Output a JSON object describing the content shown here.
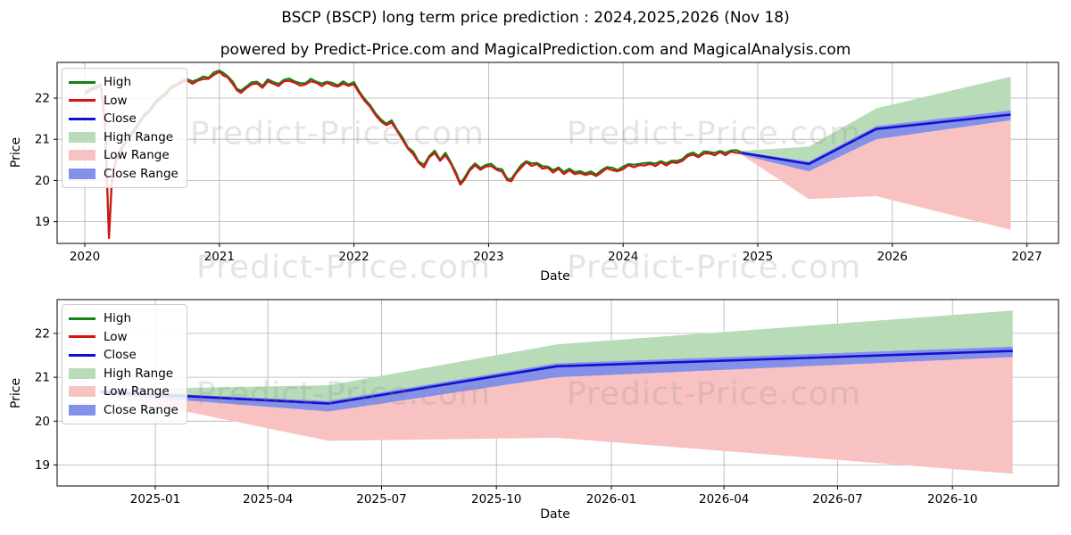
{
  "page": {
    "title": "BSCP (BSCP) long term price prediction : 2024,2025,2026 (Nov 18)",
    "subtitle": "powered by Predict-Price.com and MagicalPrediction.com and MagicalAnalysis.com"
  },
  "watermark": {
    "text": "Predict-Price.com"
  },
  "colors": {
    "high_line": "#148214",
    "low_line": "#d41414",
    "close_line": "#1111cf",
    "high_range_fill": "#b8dcb8",
    "low_range_fill": "#f9c2c2",
    "close_range_fill": "#8590e8",
    "grid": "#b0b0b0",
    "spine": "#000000",
    "tick_text": "#000000",
    "watermark": "#8a8a8a"
  },
  "legend": {
    "items": [
      {
        "label": "High",
        "kind": "line",
        "color": "#148214"
      },
      {
        "label": "Low",
        "kind": "line",
        "color": "#d41414"
      },
      {
        "label": "Close",
        "kind": "line",
        "color": "#1111cf"
      },
      {
        "label": "High Range",
        "kind": "patch",
        "color": "#b8dcb8"
      },
      {
        "label": "Low Range",
        "kind": "patch",
        "color": "#f9c2c2"
      },
      {
        "label": "Close Range",
        "kind": "patch",
        "color": "#8590e8"
      }
    ]
  },
  "chart_data": [
    {
      "type": "line",
      "title": "BSCP (BSCP) long term price prediction : 2024,2025,2026 (Nov 18)",
      "xlabel": "Date",
      "ylabel": "Price",
      "grid": true,
      "legend_position": "upper left",
      "legend_entries": [
        "High",
        "Low",
        "Close",
        "High Range",
        "Low Range",
        "Close Range"
      ],
      "x_ticks": [
        {
          "label": "2020",
          "t": 2020
        },
        {
          "label": "2021",
          "t": 2021
        },
        {
          "label": "2022",
          "t": 2022
        },
        {
          "label": "2023",
          "t": 2023
        },
        {
          "label": "2024",
          "t": 2024
        },
        {
          "label": "2025",
          "t": 2025
        },
        {
          "label": "2026",
          "t": 2026
        },
        {
          "label": "2027",
          "t": 2027
        }
      ],
      "y_ticks": [
        19,
        20,
        21,
        22
      ],
      "ylim": [
        18.45,
        22.9
      ],
      "xlim": [
        2019.79,
        2027.23
      ],
      "historical_high_low_close_note": "High/Low/Close overlap closely; High ~0.05 above Low",
      "historical": [
        [
          2020.0,
          22.1
        ],
        [
          2020.04,
          22.18
        ],
        [
          2020.08,
          22.26
        ],
        [
          2020.12,
          22.3
        ],
        [
          2020.15,
          21.4
        ],
        [
          2020.18,
          18.62
        ],
        [
          2020.2,
          19.9
        ],
        [
          2020.23,
          20.45
        ],
        [
          2020.27,
          20.72
        ],
        [
          2020.31,
          20.92
        ],
        [
          2020.35,
          21.12
        ],
        [
          2020.4,
          21.36
        ],
        [
          2020.44,
          21.55
        ],
        [
          2020.48,
          21.7
        ],
        [
          2020.52,
          21.85
        ],
        [
          2020.56,
          21.98
        ],
        [
          2020.6,
          22.1
        ],
        [
          2020.64,
          22.2
        ],
        [
          2020.68,
          22.3
        ],
        [
          2020.72,
          22.36
        ],
        [
          2020.76,
          22.4
        ],
        [
          2020.8,
          22.36
        ],
        [
          2020.84,
          22.42
        ],
        [
          2020.88,
          22.46
        ],
        [
          2020.92,
          22.5
        ],
        [
          2020.96,
          22.56
        ],
        [
          2021.0,
          22.65
        ],
        [
          2021.03,
          22.56
        ],
        [
          2021.06,
          22.48
        ],
        [
          2021.1,
          22.34
        ],
        [
          2021.13,
          22.18
        ],
        [
          2021.16,
          22.1
        ],
        [
          2021.2,
          22.26
        ],
        [
          2021.24,
          22.33
        ],
        [
          2021.28,
          22.36
        ],
        [
          2021.32,
          22.28
        ],
        [
          2021.36,
          22.4
        ],
        [
          2021.4,
          22.36
        ],
        [
          2021.44,
          22.3
        ],
        [
          2021.48,
          22.38
        ],
        [
          2021.52,
          22.42
        ],
        [
          2021.56,
          22.36
        ],
        [
          2021.6,
          22.28
        ],
        [
          2021.64,
          22.35
        ],
        [
          2021.68,
          22.4
        ],
        [
          2021.72,
          22.38
        ],
        [
          2021.76,
          22.32
        ],
        [
          2021.8,
          22.36
        ],
        [
          2021.84,
          22.32
        ],
        [
          2021.88,
          22.28
        ],
        [
          2021.92,
          22.32
        ],
        [
          2021.96,
          22.3
        ],
        [
          2022.0,
          22.32
        ],
        [
          2022.04,
          22.1
        ],
        [
          2022.08,
          21.95
        ],
        [
          2022.12,
          21.78
        ],
        [
          2022.16,
          21.6
        ],
        [
          2022.2,
          21.46
        ],
        [
          2022.24,
          21.33
        ],
        [
          2022.28,
          21.42
        ],
        [
          2022.32,
          21.2
        ],
        [
          2022.36,
          20.96
        ],
        [
          2022.4,
          20.78
        ],
        [
          2022.44,
          20.62
        ],
        [
          2022.48,
          20.42
        ],
        [
          2022.52,
          20.34
        ],
        [
          2022.56,
          20.56
        ],
        [
          2022.6,
          20.68
        ],
        [
          2022.64,
          20.5
        ],
        [
          2022.68,
          20.6
        ],
        [
          2022.72,
          20.42
        ],
        [
          2022.76,
          20.12
        ],
        [
          2022.79,
          19.87
        ],
        [
          2022.82,
          20.02
        ],
        [
          2022.86,
          20.22
        ],
        [
          2022.9,
          20.36
        ],
        [
          2022.94,
          20.28
        ],
        [
          2022.98,
          20.33
        ],
        [
          2023.02,
          20.37
        ],
        [
          2023.06,
          20.28
        ],
        [
          2023.1,
          20.2
        ],
        [
          2023.14,
          20.02
        ],
        [
          2023.17,
          19.97
        ],
        [
          2023.2,
          20.13
        ],
        [
          2023.24,
          20.31
        ],
        [
          2023.28,
          20.42
        ],
        [
          2023.32,
          20.35
        ],
        [
          2023.36,
          20.42
        ],
        [
          2023.4,
          20.28
        ],
        [
          2023.44,
          20.33
        ],
        [
          2023.48,
          20.21
        ],
        [
          2023.52,
          20.27
        ],
        [
          2023.56,
          20.17
        ],
        [
          2023.6,
          20.23
        ],
        [
          2023.64,
          20.13
        ],
        [
          2023.68,
          20.19
        ],
        [
          2023.72,
          20.11
        ],
        [
          2023.76,
          20.17
        ],
        [
          2023.8,
          20.13
        ],
        [
          2023.84,
          20.19
        ],
        [
          2023.88,
          20.32
        ],
        [
          2023.92,
          20.26
        ],
        [
          2023.96,
          20.21
        ],
        [
          2024.0,
          20.29
        ],
        [
          2024.04,
          20.35
        ],
        [
          2024.08,
          20.3
        ],
        [
          2024.12,
          20.38
        ],
        [
          2024.16,
          20.34
        ],
        [
          2024.2,
          20.41
        ],
        [
          2024.24,
          20.37
        ],
        [
          2024.28,
          20.43
        ],
        [
          2024.32,
          20.39
        ],
        [
          2024.36,
          20.45
        ],
        [
          2024.4,
          20.41
        ],
        [
          2024.44,
          20.49
        ],
        [
          2024.48,
          20.57
        ],
        [
          2024.52,
          20.61
        ],
        [
          2024.56,
          20.57
        ],
        [
          2024.6,
          20.63
        ],
        [
          2024.64,
          20.67
        ],
        [
          2024.68,
          20.63
        ],
        [
          2024.72,
          20.68
        ],
        [
          2024.76,
          20.64
        ],
        [
          2024.8,
          20.7
        ],
        [
          2024.84,
          20.66
        ],
        [
          2024.88,
          20.67
        ]
      ],
      "prediction": {
        "years": [
          2024.88,
          2025.38,
          2025.88,
          2026.88
        ],
        "close": [
          20.67,
          20.4,
          21.25,
          21.6
        ],
        "close_range_low": [
          20.62,
          20.22,
          21.0,
          21.46
        ],
        "close_range_high": [
          20.7,
          20.46,
          21.32,
          21.7
        ],
        "high_range_top": [
          20.72,
          20.82,
          21.75,
          22.52
        ],
        "low_range_bottom": [
          20.62,
          19.55,
          19.62,
          18.8
        ]
      }
    },
    {
      "type": "line",
      "xlabel": "Date",
      "ylabel": "Price",
      "grid": true,
      "legend_position": "upper left",
      "legend_entries": [
        "High",
        "Low",
        "Close",
        "High Range",
        "Low Range",
        "Close Range"
      ],
      "x_ticks": [
        {
          "label": "2025-01",
          "t": 2025.0
        },
        {
          "label": "2025-04",
          "t": 2025.247
        },
        {
          "label": "2025-07",
          "t": 2025.496
        },
        {
          "label": "2025-10",
          "t": 2025.748
        },
        {
          "label": "2026-01",
          "t": 2026.0
        },
        {
          "label": "2026-04",
          "t": 2026.247
        },
        {
          "label": "2026-07",
          "t": 2026.496
        },
        {
          "label": "2026-10",
          "t": 2026.748
        }
      ],
      "y_ticks": [
        19,
        20,
        21,
        22
      ],
      "ylim": [
        18.52,
        22.77
      ],
      "xlim": [
        2024.785,
        2026.98
      ],
      "prediction": {
        "years": [
          2024.88,
          2025.38,
          2025.88,
          2026.88
        ],
        "close": [
          20.67,
          20.4,
          21.25,
          21.6
        ],
        "close_range_low": [
          20.62,
          20.22,
          21.0,
          21.46
        ],
        "close_range_high": [
          20.7,
          20.46,
          21.32,
          21.7
        ],
        "high_range_top": [
          20.72,
          20.82,
          21.75,
          22.52
        ],
        "low_range_bottom": [
          20.62,
          19.55,
          19.62,
          18.8
        ]
      }
    }
  ]
}
